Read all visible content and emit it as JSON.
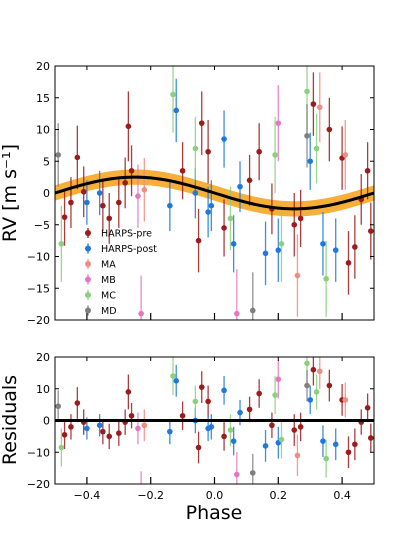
{
  "chart_data": {
    "type": "scatter",
    "xlabel": "Phase",
    "xlim": [
      -0.5,
      0.5
    ],
    "xticks": [
      "−0.4",
      "−0.2",
      "0.0",
      "0.2",
      "0.4"
    ],
    "xtick_values": [
      -0.4,
      -0.2,
      0.0,
      0.2,
      0.4
    ],
    "legend_position": "lower-left",
    "panels": [
      {
        "name": "rv",
        "ylabel": "RV [m s⁻¹]",
        "ylim": [
          -20,
          20
        ],
        "yticks": [
          "−20",
          "−15",
          "−10",
          "−5",
          "0",
          "5",
          "10",
          "15",
          "20"
        ],
        "ytick_values": [
          -20,
          -15,
          -10,
          -5,
          0,
          5,
          10,
          15,
          20
        ],
        "model": {
          "type": "sinusoid",
          "amplitude": 2.5,
          "peak_phase": -0.25,
          "band_halfwidth": 1.2,
          "line_color": "#000000",
          "band_color": "#f5a623"
        }
      },
      {
        "name": "residuals",
        "ylabel": "Residuals",
        "ylim": [
          -20,
          20
        ],
        "yticks": [
          "−20",
          "−10",
          "0",
          "10",
          "20"
        ],
        "ytick_values": [
          -20,
          -10,
          0,
          10,
          20
        ],
        "model": {
          "type": "zero-line",
          "line_color": "#000000"
        }
      }
    ],
    "series": [
      {
        "name": "HARPS-pre",
        "color": "#9b1c1c",
        "points": [
          {
            "x": -0.47,
            "y": -3.8,
            "err": 4.5,
            "res": -4.5
          },
          {
            "x": -0.45,
            "y": -1.5,
            "err": 4.0,
            "res": -2.0
          },
          {
            "x": -0.43,
            "y": 5.6,
            "err": 5.0,
            "res": 5.5
          },
          {
            "x": -0.41,
            "y": 0.2,
            "err": 4.0,
            "res": -0.5
          },
          {
            "x": -0.35,
            "y": -2.0,
            "err": 4.0,
            "res": -3.5
          },
          {
            "x": -0.33,
            "y": -4.0,
            "err": 4.0,
            "res": -5.0
          },
          {
            "x": -0.3,
            "y": -1.5,
            "err": 4.0,
            "res": -4.0
          },
          {
            "x": -0.28,
            "y": 1.6,
            "err": 4.0,
            "res": -0.5
          },
          {
            "x": -0.27,
            "y": 10.5,
            "err": 5.5,
            "res": 9.0
          },
          {
            "x": -0.26,
            "y": 3.5,
            "err": 4.0,
            "res": 1.5
          },
          {
            "x": -0.1,
            "y": 3.5,
            "err": 4.5,
            "res": 1.5
          },
          {
            "x": -0.05,
            "y": -7.5,
            "err": 5.0,
            "res": -8.5
          },
          {
            "x": -0.04,
            "y": 11.0,
            "err": 5.0,
            "res": 10.5
          },
          {
            "x": -0.02,
            "y": 6.5,
            "err": 5.0,
            "res": 6.0
          },
          {
            "x": 0.03,
            "y": -5.5,
            "err": 4.5,
            "res": -5.0
          },
          {
            "x": 0.11,
            "y": 2.0,
            "err": 4.0,
            "res": 3.5
          },
          {
            "x": 0.14,
            "y": 6.5,
            "err": 4.5,
            "res": 8.5
          },
          {
            "x": 0.18,
            "y": -2.5,
            "err": 4.0,
            "res": -1.5
          },
          {
            "x": 0.25,
            "y": -5.0,
            "err": 5.0,
            "res": -3.0
          },
          {
            "x": 0.27,
            "y": -4.0,
            "err": 4.5,
            "res": -2.0
          },
          {
            "x": 0.31,
            "y": 14.0,
            "err": 5.0,
            "res": 16.0
          },
          {
            "x": 0.36,
            "y": 10.0,
            "err": 5.0,
            "res": 11.0
          },
          {
            "x": 0.4,
            "y": 5.5,
            "err": 5.0,
            "res": 6.5
          },
          {
            "x": 0.42,
            "y": -11.0,
            "err": 5.0,
            "res": -10.0
          },
          {
            "x": 0.44,
            "y": -8.5,
            "err": 5.0,
            "res": -7.5
          },
          {
            "x": 0.46,
            "y": -1.0,
            "err": 4.0,
            "res": -0.5
          },
          {
            "x": 0.48,
            "y": 3.5,
            "err": 4.5,
            "res": 4.0
          },
          {
            "x": 0.49,
            "y": -6.0,
            "err": 4.5,
            "res": -5.5
          }
        ]
      },
      {
        "name": "HARPS-post",
        "color": "#1f77e0",
        "points": [
          {
            "x": -0.4,
            "y": -1.5,
            "err": 3.5,
            "res": -2.5
          },
          {
            "x": -0.36,
            "y": 0.0,
            "err": 3.5,
            "res": -1.5
          },
          {
            "x": -0.14,
            "y": -2.0,
            "err": 4.0,
            "res": -3.5
          },
          {
            "x": -0.12,
            "y": 13.0,
            "err": 5.0,
            "res": 12.5
          },
          {
            "x": -0.06,
            "y": 0.0,
            "err": 4.0,
            "res": 0.0
          },
          {
            "x": -0.02,
            "y": -3.0,
            "err": 4.0,
            "res": -2.5
          },
          {
            "x": -0.01,
            "y": -2.0,
            "err": 4.0,
            "res": -2.0
          },
          {
            "x": 0.03,
            "y": 8.5,
            "err": 4.5,
            "res": 9.5
          },
          {
            "x": 0.06,
            "y": -8.0,
            "err": 4.5,
            "res": -6.5
          },
          {
            "x": 0.08,
            "y": 1.0,
            "err": 4.0,
            "res": 2.5
          },
          {
            "x": 0.16,
            "y": -9.5,
            "err": 5.0,
            "res": -8.0
          },
          {
            "x": 0.2,
            "y": -9.0,
            "err": 5.0,
            "res": -7.0
          },
          {
            "x": 0.3,
            "y": 5.0,
            "err": 4.5,
            "res": 6.5
          },
          {
            "x": 0.34,
            "y": -8.0,
            "err": 5.0,
            "res": -6.5
          },
          {
            "x": 0.38,
            "y": -9.0,
            "err": 5.0,
            "res": -7.5
          }
        ]
      },
      {
        "name": "MA",
        "color": "#f28b82",
        "points": [
          {
            "x": -0.22,
            "y": 0.5,
            "err": 5.0,
            "res": -1.5
          },
          {
            "x": 0.26,
            "y": -13.0,
            "err": 6.5,
            "res": -11.0
          },
          {
            "x": 0.33,
            "y": 13.5,
            "err": 5.5,
            "res": 15.5
          },
          {
            "x": 0.41,
            "y": 6.0,
            "err": 5.5,
            "res": 6.5
          }
        ]
      },
      {
        "name": "MB",
        "color": "#e377c2",
        "points": [
          {
            "x": -0.24,
            "y": -0.5,
            "err": 5.0,
            "res": -2.5
          },
          {
            "x": -0.23,
            "y": -19.0,
            "err": 6.0,
            "res": -22.0
          },
          {
            "x": 0.07,
            "y": -19.0,
            "err": 7.0,
            "res": -17.0
          },
          {
            "x": 0.2,
            "y": 11.0,
            "err": 6.0,
            "res": 13.0
          }
        ]
      },
      {
        "name": "MC",
        "color": "#8ccf7e",
        "points": [
          {
            "x": -0.48,
            "y": -8.0,
            "err": 6.0,
            "res": -8.5
          },
          {
            "x": -0.13,
            "y": 15.5,
            "err": 6.0,
            "res": 14.0
          },
          {
            "x": -0.06,
            "y": 7.0,
            "err": 5.0,
            "res": 6.0
          },
          {
            "x": 0.05,
            "y": -4.0,
            "err": 5.0,
            "res": -3.0
          },
          {
            "x": 0.19,
            "y": 6.0,
            "err": 6.0,
            "res": 8.0
          },
          {
            "x": 0.21,
            "y": -8.0,
            "err": 6.0,
            "res": -6.0
          },
          {
            "x": 0.29,
            "y": 16.0,
            "err": 6.5,
            "res": 18.0
          },
          {
            "x": 0.32,
            "y": 7.0,
            "err": 5.5,
            "res": 9.0
          },
          {
            "x": 0.35,
            "y": -13.5,
            "err": 6.0,
            "res": -12.0
          }
        ]
      },
      {
        "name": "MD",
        "color": "#7f7f7f",
        "points": [
          {
            "x": -0.49,
            "y": 6.0,
            "err": 5.0,
            "res": 4.5
          },
          {
            "x": 0.12,
            "y": -18.5,
            "err": 6.0,
            "res": -16.5
          },
          {
            "x": 0.29,
            "y": 9.0,
            "err": 5.0,
            "res": 11.0
          }
        ]
      }
    ]
  }
}
